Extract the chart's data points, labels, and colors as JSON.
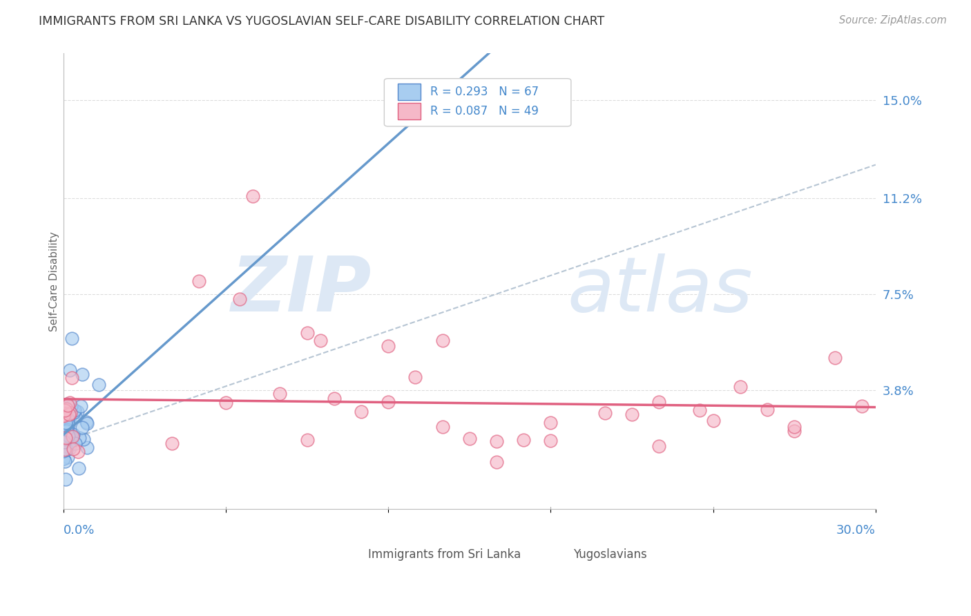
{
  "title": "IMMIGRANTS FROM SRI LANKA VS YUGOSLAVIAN SELF-CARE DISABILITY CORRELATION CHART",
  "source": "Source: ZipAtlas.com",
  "ylabel": "Self-Care Disability",
  "y_ticks": [
    0.0,
    0.038,
    0.075,
    0.112,
    0.15
  ],
  "y_tick_labels": [
    "",
    "3.8%",
    "7.5%",
    "11.2%",
    "15.0%"
  ],
  "x_range": [
    0.0,
    0.3
  ],
  "y_range": [
    -0.008,
    0.168
  ],
  "color_blue_fill": "#a8cdf0",
  "color_blue_edge": "#5588cc",
  "color_pink_fill": "#f5b8c8",
  "color_pink_edge": "#e06080",
  "color_blue_trend": "#6699cc",
  "color_pink_trend": "#e06080",
  "color_grey_dashed": "#aabbcc",
  "color_grid": "#dddddd",
  "color_tick_label": "#4488cc",
  "color_title": "#333333",
  "color_source": "#999999",
  "color_ylabel": "#666666",
  "color_legend_text": "#4488cc",
  "color_bottom_legend": "#555555",
  "watermark_color": "#dde8f5"
}
